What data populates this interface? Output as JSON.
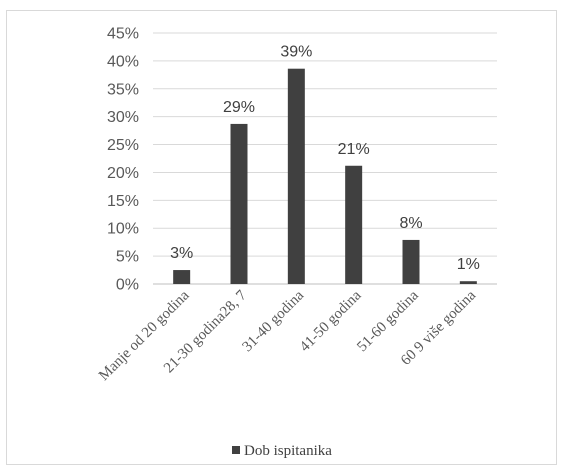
{
  "chart_data": {
    "type": "bar",
    "categories": [
      "Manje od 20 godina",
      "21-30 godina28, 7",
      "31-40 godina",
      "41-50 godina",
      "51-60 godina",
      "60 9 više godina"
    ],
    "series": [
      {
        "name": "Dob ispitanika",
        "values": [
          2.5,
          28.7,
          38.6,
          21.2,
          7.9,
          0.5
        ],
        "data_labels": [
          "3%",
          "29%",
          "39%",
          "21%",
          "8%",
          "1%"
        ]
      }
    ],
    "y_ticks": [
      "0%",
      "5%",
      "10%",
      "15%",
      "20%",
      "25%",
      "30%",
      "35%",
      "40%",
      "45%"
    ],
    "ylim": [
      0,
      45
    ],
    "grid": true,
    "legend_position": "bottom",
    "colors": {
      "bar": "#404040",
      "grid": "#d9d9d9",
      "axis": "#bfbfbf"
    }
  }
}
